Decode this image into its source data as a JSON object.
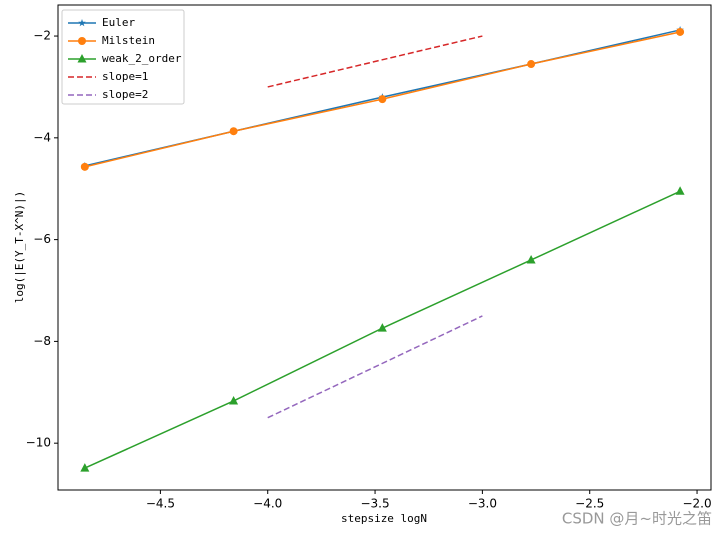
{
  "chart_data": {
    "type": "line",
    "xlabel": "stepsize logN",
    "ylabel": "log(|E(Y_T-X^N)|)",
    "watermark": "CSDN @月~时光之笛",
    "xlim": [
      -4.977,
      -1.935
    ],
    "ylim": [
      -10.92,
      -1.39
    ],
    "xticks": [
      {
        "value": -4.5,
        "label": "−4.5"
      },
      {
        "value": -4.0,
        "label": "−4.0"
      },
      {
        "value": -3.5,
        "label": "−3.5"
      },
      {
        "value": -3.0,
        "label": "−3.0"
      },
      {
        "value": -2.5,
        "label": "−2.5"
      },
      {
        "value": -2.0,
        "label": "−2.0"
      }
    ],
    "yticks": [
      {
        "value": -2,
        "label": "−2"
      },
      {
        "value": -4,
        "label": "−4"
      },
      {
        "value": -6,
        "label": "−6"
      },
      {
        "value": -8,
        "label": "−8"
      },
      {
        "value": -10,
        "label": "−10"
      }
    ],
    "grid": false,
    "legend": "upper left",
    "series": [
      {
        "name": "Euler",
        "color": "#1f77b4",
        "marker": "star",
        "dash": false,
        "x": [
          -4.852,
          -4.159,
          -3.466,
          -2.773,
          -2.079
        ],
        "values": [
          -4.55,
          -3.87,
          -3.2,
          -2.55,
          -1.88
        ]
      },
      {
        "name": "Milstein",
        "color": "#ff7f0e",
        "marker": "circle",
        "dash": false,
        "x": [
          -4.852,
          -4.159,
          -3.466,
          -2.773,
          -2.079
        ],
        "values": [
          -4.57,
          -3.87,
          -3.24,
          -2.55,
          -1.92
        ]
      },
      {
        "name": "weak_2_order",
        "color": "#2ca02c",
        "marker": "triangle",
        "dash": false,
        "x": [
          -4.852,
          -4.159,
          -3.466,
          -2.773,
          -2.079
        ],
        "values": [
          -10.49,
          -9.17,
          -7.74,
          -6.4,
          -5.05
        ]
      },
      {
        "name": "slope=1",
        "color": "#d62728",
        "marker": "none",
        "dash": true,
        "x": [
          -4,
          -3
        ],
        "values": [
          -3,
          -2
        ]
      },
      {
        "name": "slope=2",
        "color": "#9467bd",
        "marker": "none",
        "dash": true,
        "x": [
          -4,
          -3
        ],
        "values": [
          -9.5,
          -7.5
        ]
      }
    ]
  }
}
